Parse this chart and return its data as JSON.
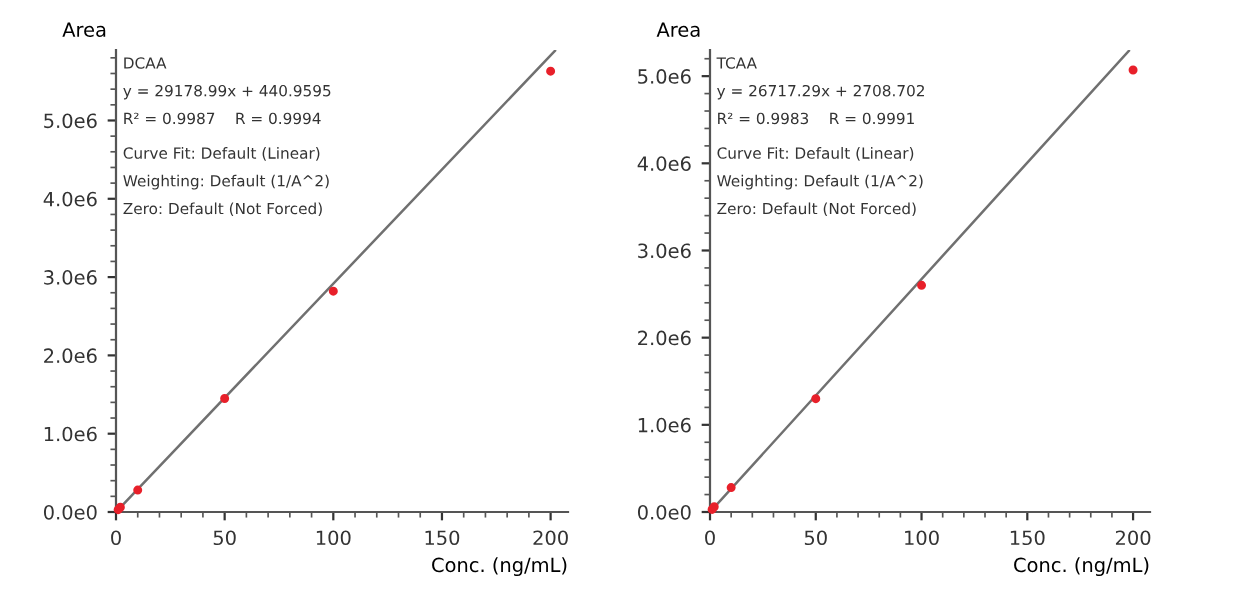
{
  "chart_data": [
    {
      "type": "scatter",
      "xlabel": "Conc. (ng/mL)",
      "ylabel": "Area",
      "annotations": [
        "DCAA",
        "y = 29178.99x + 440.9595",
        "R² = 0.9987    R = 0.9994",
        "Curve Fit: Default (Linear)",
        "Weighting: Default (1/A^2)",
        "Zero: Default (Not Forced)"
      ],
      "series": [
        {
          "type": "line",
          "color": "#707070",
          "x": [
            0,
            202
          ],
          "values": [
            0,
            5890000
          ]
        },
        {
          "color": "#e8202a",
          "marker": "circle",
          "x": [
            1,
            2,
            10,
            50,
            100,
            200
          ],
          "values": [
            30000,
            60000,
            280000,
            1450000,
            2820000,
            5630000
          ]
        }
      ],
      "xlim": [
        0,
        208
      ],
      "xticks": [
        0,
        50,
        100,
        150,
        200
      ],
      "ylim": [
        0,
        5900000
      ],
      "yticks": [
        {
          "value": 0,
          "label": "0.0e0"
        },
        {
          "value": 1000000,
          "label": "1.0e6"
        },
        {
          "value": 2000000,
          "label": "2.0e6"
        },
        {
          "value": 3000000,
          "label": "3.0e6"
        },
        {
          "value": 4000000,
          "label": "4.0e6"
        },
        {
          "value": 5000000,
          "label": "5.0e6"
        }
      ],
      "grid": false,
      "legend": false
    },
    {
      "type": "scatter",
      "xlabel": "Conc. (ng/mL)",
      "ylabel": "Area",
      "annotations": [
        "TCAA",
        "y = 26717.29x + 2708.702",
        "R² = 0.9983    R = 0.9991",
        "Curve Fit: Default (Linear)",
        "Weighting: Default (1/A^2)",
        "Zero: Default (Not Forced)"
      ],
      "series": [
        {
          "type": "line",
          "color": "#707070",
          "x": [
            0,
            198
          ],
          "values": [
            0,
            5290000
          ]
        },
        {
          "color": "#e8202a",
          "marker": "circle",
          "x": [
            1,
            2,
            10,
            50,
            100,
            200
          ],
          "values": [
            30000,
            60000,
            280000,
            1300000,
            2600000,
            5070000
          ]
        }
      ],
      "xlim": [
        0,
        208
      ],
      "xticks": [
        0,
        50,
        100,
        150,
        200
      ],
      "ylim": [
        0,
        5300000
      ],
      "yticks": [
        {
          "value": 0,
          "label": "0.0e0"
        },
        {
          "value": 1000000,
          "label": "1.0e6"
        },
        {
          "value": 2000000,
          "label": "2.0e6"
        },
        {
          "value": 3000000,
          "label": "3.0e6"
        },
        {
          "value": 4000000,
          "label": "4.0e6"
        },
        {
          "value": 5000000,
          "label": "5.0e6"
        }
      ],
      "grid": false,
      "legend": false
    }
  ]
}
